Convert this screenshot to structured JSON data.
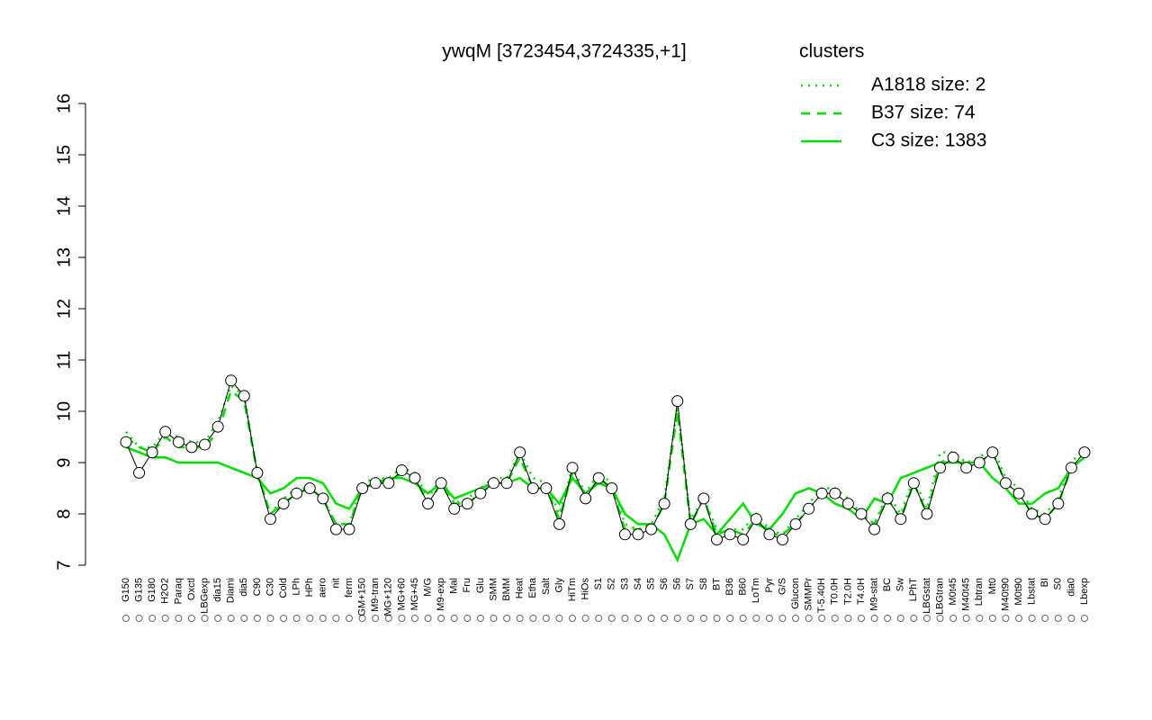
{
  "chart_data": {
    "type": "line",
    "title": "ywqM [3723454,3724335,+1]",
    "legend_title": "clusters",
    "legend_color": "#00dd00",
    "ylim": [
      7,
      16
    ],
    "yticks": [
      7,
      8,
      9,
      10,
      11,
      12,
      13,
      14,
      15,
      16
    ],
    "categories": [
      "G150",
      "G135",
      "G180",
      "H2O2",
      "Paraq",
      "Oxctl",
      "LBGexp",
      "dia15",
      "Diami",
      "dia5",
      "C90",
      "C30",
      "Cold",
      "LPh",
      "HPh",
      "aero",
      "nit",
      "ferm",
      "GM+150",
      "M9-tran",
      "MG+120",
      "MG+60",
      "MG+45",
      "M/G",
      "M9-exp",
      "Mal",
      "Fru",
      "Glu",
      "SMM",
      "BMM",
      "Heat",
      "Etha",
      "Salt",
      "Gly",
      "HiTm",
      "HiOs",
      "S1",
      "S2",
      "S3",
      "S4",
      "S5",
      "S6",
      "S6",
      "S7",
      "S8",
      "BT",
      "B36",
      "B60",
      "LoTm",
      "Pyr",
      "G/S",
      "Glucon",
      "SMMPr",
      "T-5.40H",
      "T0.0H",
      "T2.0H",
      "T4.0H",
      "M9-stat",
      "BC",
      "Sw",
      "LPhT",
      "LBGstat",
      "LBGtran",
      "M0t45",
      "M40t45",
      "Lbtran",
      "Mt0",
      "M40t90",
      "M0t90",
      "Lbstat",
      "BI",
      "S0",
      "dia0",
      "Lbexp"
    ],
    "values": [
      9.4,
      8.8,
      9.2,
      9.6,
      9.4,
      9.3,
      9.35,
      9.7,
      10.6,
      10.3,
      8.8,
      7.9,
      8.2,
      8.4,
      8.5,
      8.3,
      7.7,
      7.7,
      8.5,
      8.6,
      8.6,
      8.85,
      8.7,
      8.2,
      8.6,
      8.1,
      8.2,
      8.4,
      8.6,
      8.6,
      9.2,
      8.5,
      8.5,
      7.8,
      8.9,
      8.3,
      8.7,
      8.5,
      7.6,
      7.6,
      7.7,
      8.2,
      10.2,
      7.8,
      8.3,
      7.5,
      7.6,
      7.5,
      7.9,
      7.6,
      7.5,
      7.8,
      8.1,
      8.4,
      8.4,
      8.2,
      8.0,
      7.7,
      8.3,
      7.9,
      8.6,
      8.0,
      8.9,
      9.1,
      8.9,
      9.0,
      9.2,
      8.6,
      8.4,
      8.0,
      7.9,
      8.2,
      8.9,
      9.2
    ],
    "series": [
      {
        "name": "A1818 size: 2",
        "color": "#00dd00",
        "style": "dotted",
        "values": [
          9.6,
          9.3,
          9.3,
          9.6,
          9.5,
          9.4,
          9.4,
          9.8,
          10.5,
          10.3,
          8.8,
          8.0,
          8.3,
          8.5,
          8.5,
          8.3,
          7.8,
          7.8,
          8.6,
          8.7,
          8.7,
          8.9,
          8.8,
          8.3,
          8.7,
          8.2,
          8.3,
          8.5,
          8.7,
          8.7,
          9.2,
          8.7,
          8.6,
          8.0,
          8.9,
          8.4,
          8.8,
          8.6,
          7.8,
          7.7,
          7.8,
          8.3,
          10.1,
          7.9,
          8.3,
          7.7,
          7.7,
          7.7,
          8.0,
          7.7,
          7.6,
          7.9,
          8.2,
          8.5,
          8.5,
          8.3,
          8.0,
          7.8,
          8.4,
          8.0,
          8.7,
          8.1,
          9.2,
          9.2,
          9.0,
          9.1,
          9.3,
          8.7,
          8.5,
          8.1,
          8.0,
          8.3,
          9.0,
          9.3
        ]
      },
      {
        "name": "B37 size: 74",
        "color": "#00dd00",
        "style": "dashed",
        "values": [
          9.5,
          9.3,
          9.2,
          9.5,
          9.3,
          9.3,
          9.3,
          9.6,
          10.4,
          10.2,
          8.8,
          8.0,
          8.2,
          8.4,
          8.5,
          8.3,
          7.8,
          7.8,
          8.5,
          8.6,
          8.6,
          8.8,
          8.7,
          8.2,
          8.6,
          8.2,
          8.2,
          8.4,
          8.6,
          8.6,
          9.1,
          8.5,
          8.5,
          7.9,
          8.8,
          8.3,
          8.7,
          8.5,
          7.7,
          7.7,
          7.7,
          8.2,
          10.0,
          7.8,
          8.3,
          7.6,
          7.7,
          7.6,
          7.9,
          7.6,
          7.6,
          7.8,
          8.1,
          8.4,
          8.4,
          8.2,
          8.0,
          7.8,
          8.3,
          7.9,
          8.6,
          8.0,
          9.0,
          9.1,
          8.9,
          9.0,
          9.2,
          8.6,
          8.4,
          8.0,
          7.9,
          8.2,
          8.9,
          9.2
        ]
      },
      {
        "name": "C3 size: 1383",
        "color": "#00dd00",
        "style": "solid",
        "values": [
          9.3,
          9.2,
          9.1,
          9.1,
          9.0,
          9.0,
          9.0,
          9.0,
          8.9,
          8.8,
          8.7,
          8.4,
          8.5,
          8.7,
          8.7,
          8.6,
          8.2,
          8.1,
          8.5,
          8.6,
          8.7,
          8.7,
          8.6,
          8.4,
          8.6,
          8.3,
          8.4,
          8.5,
          8.6,
          8.6,
          8.7,
          8.5,
          8.5,
          8.2,
          8.7,
          8.4,
          8.6,
          8.5,
          8.0,
          7.8,
          7.8,
          7.6,
          7.1,
          7.8,
          7.9,
          7.6,
          7.9,
          8.2,
          7.8,
          7.7,
          8.0,
          8.4,
          8.5,
          8.4,
          8.2,
          8.1,
          7.9,
          8.3,
          8.2,
          8.7,
          8.8,
          8.9,
          9.0,
          9.0,
          9.0,
          9.0,
          8.7,
          8.5,
          8.2,
          8.2,
          8.4,
          8.5,
          8.9,
          9.1
        ]
      }
    ]
  }
}
